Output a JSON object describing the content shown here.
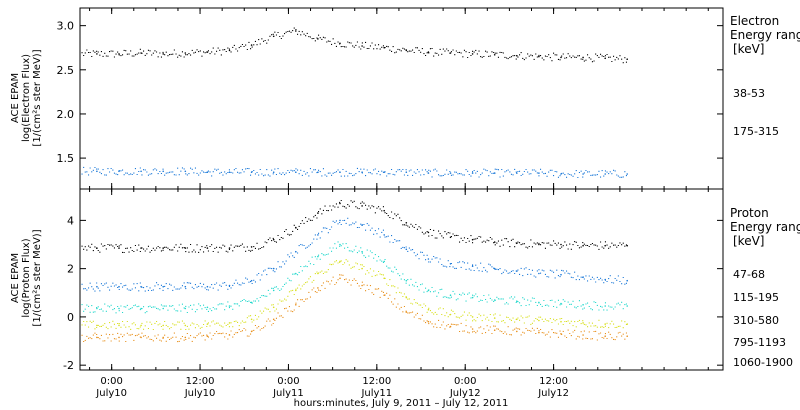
{
  "chart_data": [
    {
      "type": "scatter",
      "ylabel": [
        "ACE EPAM",
        "log(Electron Flux)",
        "[1/(cm²s ster MeV)]"
      ],
      "ylim": [
        1.15,
        3.2
      ],
      "yticks": [
        1.5,
        2.0,
        2.5,
        3.0
      ],
      "ytick_labels": [
        "1.5",
        "2.0",
        "2.5",
        "3.0"
      ],
      "legend_title": [
        "Electron",
        "Energy range",
        "[keV]"
      ],
      "series": [
        {
          "name": "38-53",
          "color": "#000000",
          "values": [
            2.68,
            2.68,
            2.69,
            2.68,
            2.69,
            2.7,
            2.72,
            2.78,
            2.88,
            2.94,
            2.85,
            2.8,
            2.77,
            2.75,
            2.72,
            2.7,
            2.69,
            2.68,
            2.67,
            2.66,
            2.65,
            2.64,
            2.64,
            2.63,
            2.62
          ]
        },
        {
          "name": "175-315",
          "color": "#1a78d8",
          "values": [
            1.35,
            1.35,
            1.35,
            1.35,
            1.35,
            1.34,
            1.34,
            1.34,
            1.34,
            1.34,
            1.34,
            1.34,
            1.34,
            1.34,
            1.34,
            1.33,
            1.33,
            1.33,
            1.33,
            1.33,
            1.33,
            1.32,
            1.32,
            1.32,
            1.32
          ]
        }
      ]
    },
    {
      "type": "scatter",
      "ylabel": [
        "ACE EPAM",
        "log(Proton Flux)",
        "[1/(cm²s ster MeV)]"
      ],
      "ylim": [
        -2.2,
        5.3
      ],
      "yticks": [
        -2,
        0,
        2,
        4
      ],
      "ytick_labels": [
        "-2",
        "0",
        "2",
        "4"
      ],
      "legend_title": [
        "Proton",
        "Energy range",
        "[keV]"
      ],
      "series": [
        {
          "name": "47-68",
          "color": "#000000",
          "values": [
            2.85,
            2.85,
            2.85,
            2.85,
            2.85,
            2.85,
            2.85,
            2.9,
            3.2,
            3.7,
            4.3,
            4.7,
            4.6,
            4.4,
            3.9,
            3.5,
            3.3,
            3.2,
            3.1,
            3.05,
            3.0,
            3.0,
            2.95,
            2.95,
            2.95
          ]
        },
        {
          "name": "115-195",
          "color": "#1a78d8",
          "values": [
            1.25,
            1.25,
            1.25,
            1.25,
            1.25,
            1.25,
            1.3,
            1.5,
            2.0,
            2.7,
            3.4,
            4.0,
            3.8,
            3.4,
            2.8,
            2.4,
            2.2,
            2.1,
            2.0,
            1.9,
            1.8,
            1.75,
            1.65,
            1.55,
            1.5
          ]
        },
        {
          "name": "310-580",
          "color": "#22d8cc",
          "values": [
            0.35,
            0.35,
            0.35,
            0.35,
            0.35,
            0.4,
            0.45,
            0.6,
            1.1,
            1.8,
            2.5,
            3.0,
            2.7,
            2.3,
            1.5,
            1.1,
            0.9,
            0.8,
            0.7,
            0.65,
            0.6,
            0.55,
            0.5,
            0.45,
            0.45
          ]
        },
        {
          "name": "795-1193",
          "color": "#d8e020",
          "values": [
            -0.35,
            -0.35,
            -0.35,
            -0.35,
            -0.35,
            -0.3,
            -0.25,
            -0.1,
            0.4,
            1.1,
            1.8,
            2.3,
            2.0,
            1.6,
            0.8,
            0.3,
            0.1,
            0.0,
            -0.05,
            -0.1,
            -0.15,
            -0.2,
            -0.25,
            -0.3,
            -0.3
          ]
        },
        {
          "name": "1060-1900",
          "color": "#e8901c",
          "values": [
            -0.85,
            -0.85,
            -0.85,
            -0.85,
            -0.85,
            -0.8,
            -0.75,
            -0.6,
            -0.1,
            0.5,
            1.2,
            1.6,
            1.3,
            0.9,
            0.2,
            -0.2,
            -0.4,
            -0.5,
            -0.55,
            -0.6,
            -0.65,
            -0.7,
            -0.75,
            -0.8,
            -0.8
          ]
        }
      ]
    }
  ],
  "x_axis": {
    "xlim_hours": [
      -4.3,
      83.0
    ],
    "data_end_hour": 70.0,
    "sample_times_hours": [
      -2,
      1,
      4,
      7,
      10,
      13,
      16,
      19,
      22,
      25,
      28,
      31,
      34,
      37,
      40,
      43,
      46,
      49,
      52,
      55,
      58,
      61,
      64,
      67,
      70
    ],
    "ticks_hours": [
      0,
      12,
      24,
      36,
      48,
      60
    ],
    "tick_time_labels": [
      "0:00",
      "12:00",
      "0:00",
      "12:00",
      "0:00",
      "12:00"
    ],
    "tick_date_labels": [
      "July10",
      "July10",
      "July11",
      "July11",
      "July12",
      "July12"
    ],
    "xlabel": "hours:minutes, July  9, 2011 – July 12, 2011"
  }
}
